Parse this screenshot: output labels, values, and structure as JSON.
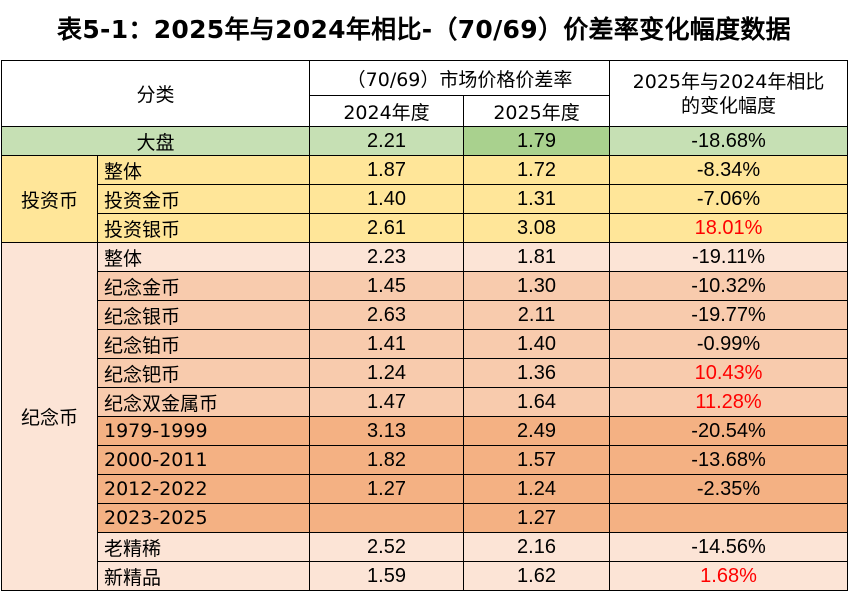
{
  "title": "表5-1：2025年与2024年相比-（70/69）价差率变化幅度数据",
  "header": {
    "category": "分类",
    "spread_group": "（70/69）市场价格价差率",
    "year_2024": "2024年度",
    "year_2025": "2025年度",
    "change_line1": "2025年与2024年相比",
    "change_line2": "的变化幅度"
  },
  "colors": {
    "market_row": "#c6e0b4",
    "market_highlight": "#a9d18e",
    "investment_rows": "#ffe699",
    "commem_light": "#fce4d6",
    "commem_medium": "#f8cbad",
    "commem_dark": "#f4b183",
    "negative_text": "#000000",
    "positive_text": "#ff0000"
  },
  "groups": {
    "market": "大盘",
    "investment": "投资币",
    "commemorative": "纪念币"
  },
  "rows": [
    {
      "group": "market",
      "label": "大盘",
      "v2024": "2.21",
      "v2025": "1.79",
      "change": "-18.68%"
    },
    {
      "group": "investment",
      "label": "整体",
      "v2024": "1.87",
      "v2025": "1.72",
      "change": "-8.34%"
    },
    {
      "group": "investment",
      "label": "投资金币",
      "v2024": "1.40",
      "v2025": "1.31",
      "change": "-7.06%"
    },
    {
      "group": "investment",
      "label": "投资银币",
      "v2024": "2.61",
      "v2025": "3.08",
      "change": "18.01%"
    },
    {
      "group": "commemorative",
      "label": "整体",
      "v2024": "2.23",
      "v2025": "1.81",
      "change": "-19.11%"
    },
    {
      "group": "commemorative",
      "label": "纪念金币",
      "v2024": "1.45",
      "v2025": "1.30",
      "change": "-10.32%"
    },
    {
      "group": "commemorative",
      "label": "纪念银币",
      "v2024": "2.63",
      "v2025": "2.11",
      "change": "-19.77%"
    },
    {
      "group": "commemorative",
      "label": "纪念铂币",
      "v2024": "1.41",
      "v2025": "1.40",
      "change": "-0.99%"
    },
    {
      "group": "commemorative",
      "label": "纪念钯币",
      "v2024": "1.24",
      "v2025": "1.36",
      "change": "10.43%"
    },
    {
      "group": "commemorative",
      "label": "纪念双金属币",
      "v2024": "1.47",
      "v2025": "1.64",
      "change": "11.28%"
    },
    {
      "group": "commemorative",
      "label": "1979-1999",
      "v2024": "3.13",
      "v2025": "2.49",
      "change": "-20.54%"
    },
    {
      "group": "commemorative",
      "label": "2000-2011",
      "v2024": "1.82",
      "v2025": "1.57",
      "change": "-13.68%"
    },
    {
      "group": "commemorative",
      "label": "2012-2022",
      "v2024": "1.27",
      "v2025": "1.24",
      "change": "-2.35%"
    },
    {
      "group": "commemorative",
      "label": "2023-2025",
      "v2024": "",
      "v2025": "1.27",
      "change": ""
    },
    {
      "group": "commemorative",
      "label": "老精稀",
      "v2024": "2.52",
      "v2025": "2.16",
      "change": "-14.56%"
    },
    {
      "group": "commemorative",
      "label": "新精品",
      "v2024": "1.59",
      "v2025": "1.62",
      "change": "1.68%"
    }
  ],
  "chart_data": {
    "type": "table",
    "title": "表5-1：2025年与2024年相比-（70/69）价差率变化幅度数据",
    "columns": [
      "分类",
      "2024年度",
      "2025年度",
      "2025年与2024年相比的变化幅度"
    ],
    "categories": [
      "大盘",
      "投资币-整体",
      "投资币-投资金币",
      "投资币-投资银币",
      "纪念币-整体",
      "纪念币-纪念金币",
      "纪念币-纪念银币",
      "纪念币-纪念铂币",
      "纪念币-纪念钯币",
      "纪念币-纪念双金属币",
      "纪念币-1979-1999",
      "纪念币-2000-2011",
      "纪念币-2012-2022",
      "纪念币-2023-2025",
      "纪念币-老精稀",
      "纪念币-新精品"
    ],
    "series": [
      {
        "name": "2024年度",
        "values": [
          2.21,
          1.87,
          1.4,
          2.61,
          2.23,
          1.45,
          2.63,
          1.41,
          1.24,
          1.47,
          3.13,
          1.82,
          1.27,
          null,
          2.52,
          1.59
        ]
      },
      {
        "name": "2025年度",
        "values": [
          1.79,
          1.72,
          1.31,
          3.08,
          1.81,
          1.3,
          2.11,
          1.4,
          1.36,
          1.64,
          2.49,
          1.57,
          1.24,
          1.27,
          2.16,
          1.62
        ]
      },
      {
        "name": "2025年与2024年相比的变化幅度",
        "values": [
          -18.68,
          -8.34,
          -7.06,
          18.01,
          -19.11,
          -10.32,
          -19.77,
          -0.99,
          10.43,
          11.28,
          -20.54,
          -13.68,
          -2.35,
          null,
          -14.56,
          1.68
        ]
      }
    ]
  }
}
